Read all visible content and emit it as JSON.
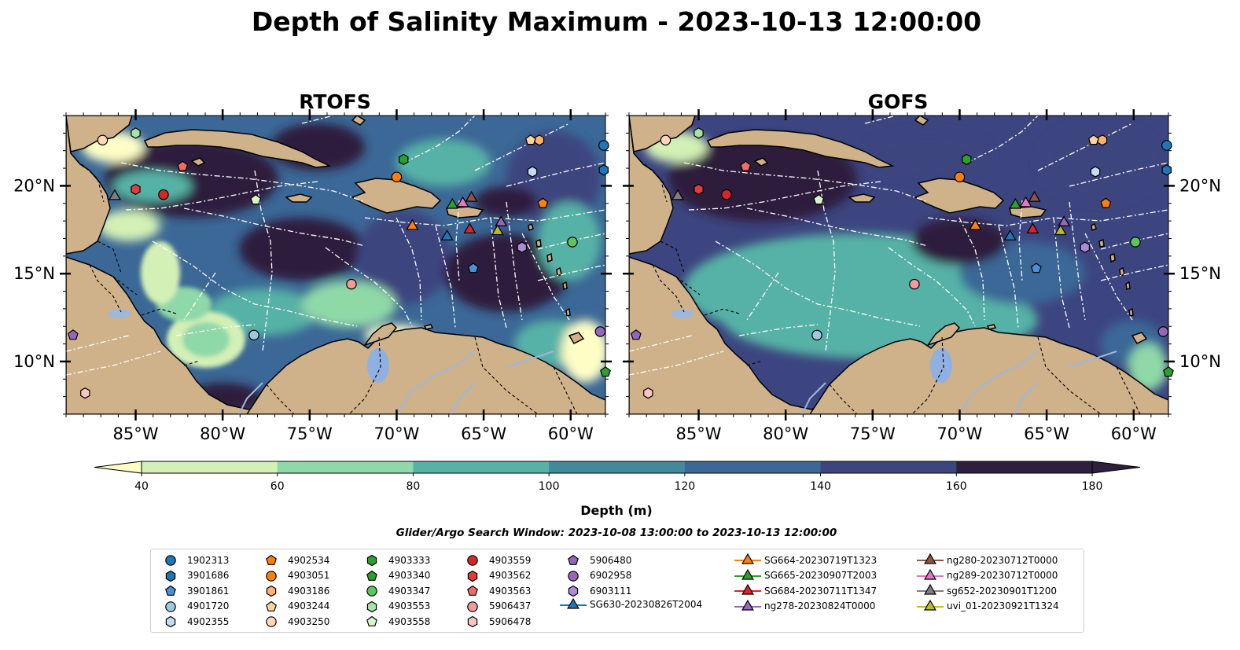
{
  "figure": {
    "title": "Depth of Salinity Maximum - 2023-10-13 12:00:00",
    "search_window": "Glider/Argo Search Window: 2023-10-08 13:00:00 to 2023-10-13 12:00:00"
  },
  "panels": [
    {
      "title": "RTOFS"
    },
    {
      "title": "GOFS"
    }
  ],
  "map": {
    "lon_range": [
      -89,
      -58
    ],
    "lat_range": [
      7,
      24
    ],
    "lon_ticks": [
      {
        "lon": -85,
        "label": "85°W"
      },
      {
        "lon": -80,
        "label": "80°W"
      },
      {
        "lon": -75,
        "label": "75°W"
      },
      {
        "lon": -70,
        "label": "70°W"
      },
      {
        "lon": -65,
        "label": "65°W"
      },
      {
        "lon": -60,
        "label": "60°W"
      }
    ],
    "lat_ticks": [
      {
        "lat": 20,
        "label": "20°N"
      },
      {
        "lat": 15,
        "label": "15°N"
      },
      {
        "lat": 10,
        "label": "10°N"
      }
    ],
    "colors": {
      "land": "#cfb28a",
      "lake": "#8fb0e0",
      "river": "#9db8d9",
      "coast": "#000000",
      "eez": "#ffffff"
    }
  },
  "colorbar": {
    "label": "Depth (m)",
    "ticks": [
      "40",
      "60",
      "80",
      "100",
      "120",
      "140",
      "160",
      "180"
    ],
    "colors": [
      "#fdfdc6",
      "#d3f0b6",
      "#8fd8a8",
      "#56b2a6",
      "#42899d",
      "#3b6896",
      "#3c457f",
      "#2d1f3d"
    ],
    "cmap": "deep"
  },
  "platforms": [
    {
      "id": "1902313",
      "type": "argo",
      "marker": "circle",
      "color": "#1f77b4",
      "lon": -58.1,
      "lat": 22.3
    },
    {
      "id": "3901686",
      "type": "argo",
      "marker": "hexagon",
      "color": "#1f77b4",
      "lon": -58.1,
      "lat": 20.9
    },
    {
      "id": "3901861",
      "type": "argo",
      "marker": "pentagon",
      "color": "#4a90d9",
      "lon": -65.6,
      "lat": 15.3
    },
    {
      "id": "4901720",
      "type": "argo",
      "marker": "circle",
      "color": "#9ecae1",
      "lon": -78.2,
      "lat": 11.5
    },
    {
      "id": "4902355",
      "type": "argo",
      "marker": "hexagon",
      "color": "#c6dbef",
      "lon": -62.2,
      "lat": 20.8
    },
    {
      "id": "4902534",
      "type": "argo",
      "marker": "pentagon",
      "color": "#ff7f0e",
      "lon": -61.6,
      "lat": 19.0
    },
    {
      "id": "4903051",
      "type": "argo",
      "marker": "circle",
      "color": "#ff7f0e",
      "lon": -70.0,
      "lat": 20.5
    },
    {
      "id": "4903186",
      "type": "argo",
      "marker": "hexagon",
      "color": "#ffb06e",
      "lon": -61.8,
      "lat": 22.6
    },
    {
      "id": "4903244",
      "type": "argo",
      "marker": "pentagon",
      "color": "#ffd2a0",
      "lon": -62.3,
      "lat": 22.6
    },
    {
      "id": "4903250",
      "type": "argo",
      "marker": "circle",
      "color": "#ffd8b8",
      "lon": -86.9,
      "lat": 22.6
    },
    {
      "id": "4903333",
      "type": "argo",
      "marker": "hexagon",
      "color": "#2ca02c",
      "lon": -69.6,
      "lat": 21.5
    },
    {
      "id": "4903340",
      "type": "argo",
      "marker": "pentagon",
      "color": "#2ca02c",
      "lon": -58.0,
      "lat": 9.4
    },
    {
      "id": "4903347",
      "type": "argo",
      "marker": "circle",
      "color": "#5cc65c",
      "lon": -59.9,
      "lat": 16.8
    },
    {
      "id": "4903553",
      "type": "argo",
      "marker": "hexagon",
      "color": "#a6e3a6",
      "lon": -85.0,
      "lat": 23.0
    },
    {
      "id": "4903558",
      "type": "argo",
      "marker": "pentagon",
      "color": "#d8f5c8",
      "lon": -78.1,
      "lat": 19.2
    },
    {
      "id": "4903559",
      "type": "argo",
      "marker": "circle",
      "color": "#d62728",
      "lon": -83.4,
      "lat": 19.5
    },
    {
      "id": "4903562",
      "type": "argo",
      "marker": "hexagon",
      "color": "#e03c3c",
      "lon": -85.0,
      "lat": 19.8
    },
    {
      "id": "4903563",
      "type": "argo",
      "marker": "pentagon",
      "color": "#f06a6a",
      "lon": -82.3,
      "lat": 21.1
    },
    {
      "id": "5906437",
      "type": "argo",
      "marker": "circle",
      "color": "#f59a9a",
      "lon": -72.6,
      "lat": 14.4
    },
    {
      "id": "5906478",
      "type": "argo",
      "marker": "hexagon",
      "color": "#fbc4c4",
      "lon": -87.9,
      "lat": 8.2
    },
    {
      "id": "5906480",
      "type": "argo",
      "marker": "pentagon",
      "color": "#9467bd",
      "lon": -88.6,
      "lat": 11.5
    },
    {
      "id": "6902958",
      "type": "argo",
      "marker": "circle",
      "color": "#9467bd",
      "lon": -58.3,
      "lat": 11.7
    },
    {
      "id": "6903111",
      "type": "argo",
      "marker": "hexagon",
      "color": "#b08ad6",
      "lon": -62.8,
      "lat": 16.5
    },
    {
      "id": "SG630-20230826T2004",
      "type": "glider",
      "marker": "triangle",
      "color": "#1f77b4",
      "lon": -67.1,
      "lat": 17.1
    },
    {
      "id": "SG664-20230719T1323",
      "type": "glider",
      "marker": "triangle",
      "color": "#ff7f0e",
      "lon": -69.1,
      "lat": 17.7
    },
    {
      "id": "SG665-20230907T2003",
      "type": "glider",
      "marker": "triangle",
      "color": "#2ca02c",
      "lon": -66.8,
      "lat": 18.9
    },
    {
      "id": "SG684-20230711T1347",
      "type": "glider",
      "marker": "triangle",
      "color": "#d62728",
      "lon": -65.8,
      "lat": 17.5
    },
    {
      "id": "ng278-20230824T0000",
      "type": "glider",
      "marker": "triangle",
      "color": "#9467bd",
      "lon": -64.0,
      "lat": 17.9
    },
    {
      "id": "ng280-20230712T0000",
      "type": "glider",
      "marker": "triangle",
      "color": "#8c564b",
      "lon": -65.7,
      "lat": 19.3
    },
    {
      "id": "ng289-20230712T0000",
      "type": "glider",
      "marker": "triangle",
      "color": "#e377c2",
      "lon": -66.2,
      "lat": 19.0
    },
    {
      "id": "sg652-20230901T1200",
      "type": "glider",
      "marker": "triangle",
      "color": "#7f7f7f",
      "lon": -86.2,
      "lat": 19.4
    },
    {
      "id": "uvi_01-20230921T1324",
      "type": "glider",
      "marker": "triangle",
      "color": "#bcbd22",
      "lon": -64.2,
      "lat": 17.4
    }
  ]
}
